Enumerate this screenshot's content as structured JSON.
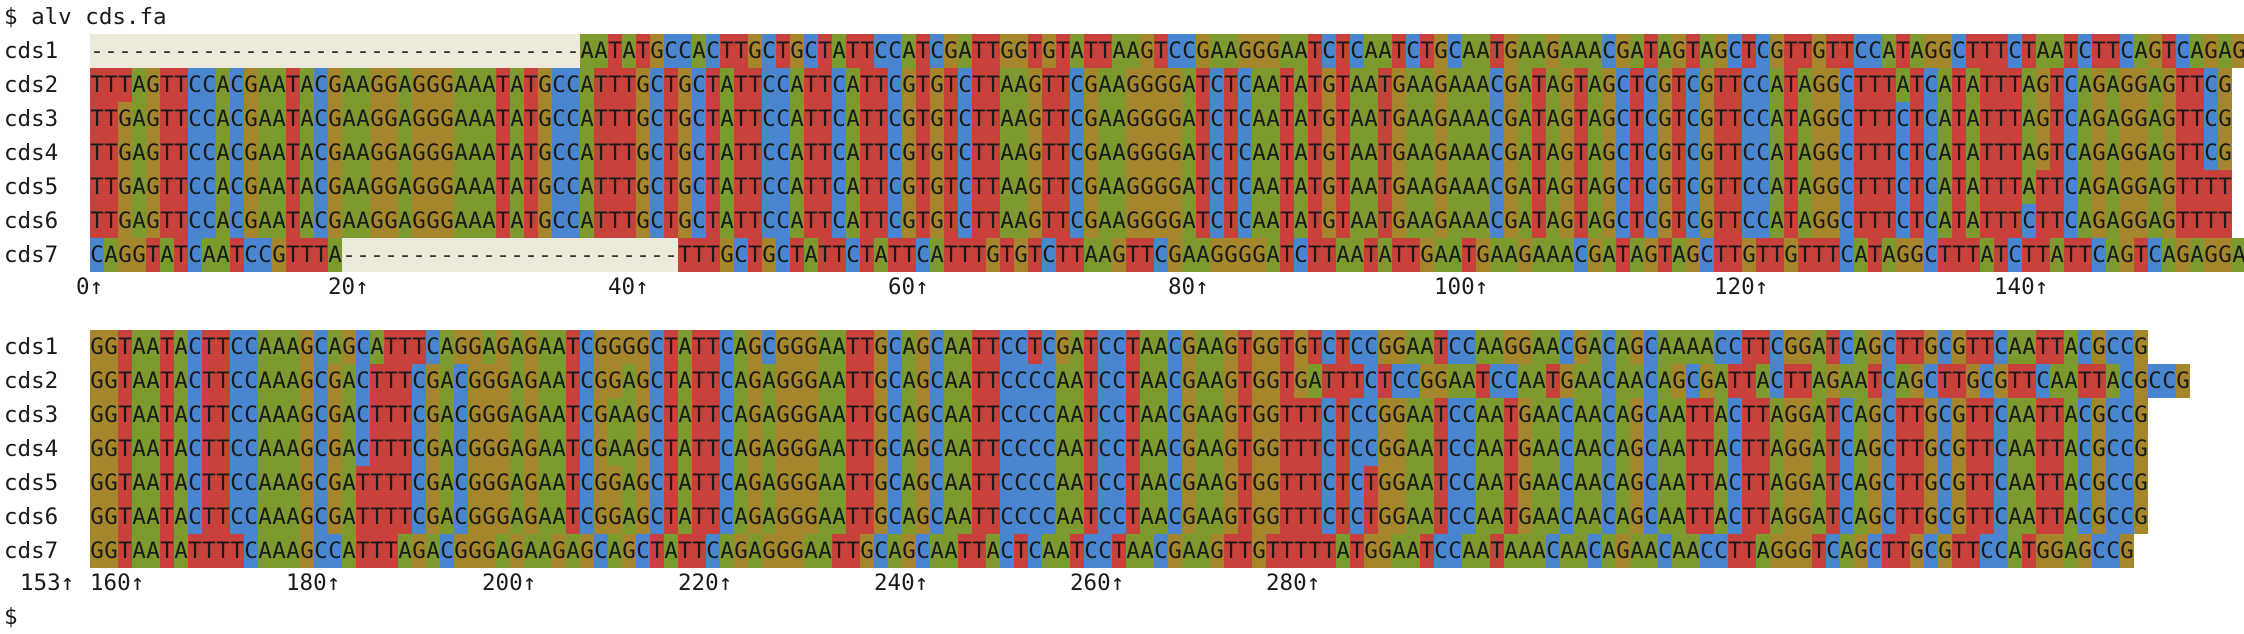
{
  "terminal": {
    "command": "$ alv cds.fa",
    "prompt_end": "$"
  },
  "colors": {
    "A": "#7d9a2e",
    "C": "#4a86d0",
    "G": "#a5862c",
    "T": "#c8413a",
    "gap": "#eeeadb",
    "pink": "#d04e8e"
  },
  "blocks": [
    {
      "rows": [
        {
          "label": "cds1",
          "seq": "-----------------------------------AATATGCCACTTGCTGCTATTCCATCGATTGGTGTATTAAGTCCGAAGGGAATCTCAATCTGCAATGAAGAAACGATAGTAGCTCGTTGTTCCATAGGCTTTCTAATCTTCAGTCAGAGGAGTTTG"
        },
        {
          "label": "cds2",
          "seq": "TTTAGTTCCACGAATACGAAGGAGGGAAATATGCCATTTGCTGCTATTCCATTCATTCGTGTCTTAAGTTCGAAGGGGATCTCAATATGTAATGAAGAAACGATAGTAGCTCGTCGTTCCATAGGCTTTATCATATTTAGTCAGAGGAGTTCG"
        },
        {
          "label": "cds3",
          "seq": "TTGAGTTCCACGAATACGAAGGAGGGAAATATGCCATTTGCTGCTATTCCATTCATTCGTGTCTTAAGTTCGAAGGGGATCTCAATATGTAATGAAGAAACGATAGTAGCTCGTCGTTCCATAGGCTTTCTCATATTTAGTCAGAGGAGTTCG"
        },
        {
          "label": "cds4",
          "seq": "TTGAGTTCCACGAATACGAAGGAGGGAAATATGCCATTTGCTGCTATTCCATTCATTCGTGTCTTAAGTTCGAAGGGGATCTCAATATGTAATGAAGAAACGATAGTAGCTCGTCGTTCCATAGGCTTTCTCATATTTAGTCAGAGGAGTTCG"
        },
        {
          "label": "cds5",
          "seq": "TTGAGTTCCACGAATACGAAGGAGGGAAATATGCCATTTGCTGCTATTCCATTCATTCGTGTCTTAAGTTCGAAGGGGATCTCAATATGTAATGAAGAAACGATAGTAGCTCGTCGTTCCATAGGCTTTCTCATATTTATTCAGAGGAGTTTT"
        },
        {
          "label": "cds6",
          "seq": "TTGAGTTCCACGAATACGAAGGAGGGAAATATGCCATTTGCTGCTATTCCATTCATTCGTGTCTTAAGTTCGAAGGGGATCTCAATATGTAATGAAGAAACGATAGTAGCTCGTCGTTCCATAGGCTTTCTCATATTTCTTCAGAGGAGTTTT"
        },
        {
          "label": "cds7",
          "seq": "CAGGTATCAATCCGTTTA------------------------TTTGCTGCTATTCTATTCATTTGTGTCTTAAGTTCGAAGGGGATCTTAATATTGAATGAAGAAACGATAGTAGCTTGTTGTTTCATAGGCTTTATCTTATTCAGTCAGAGGAGTTCG"
        }
      ],
      "ruler": [
        {
          "text": "0↑",
          "col": 0
        },
        {
          "text": "20↑",
          "col": 19
        },
        {
          "text": "40↑",
          "col": 39
        },
        {
          "text": "60↑",
          "col": 59
        },
        {
          "text": "80↑",
          "col": 79
        },
        {
          "text": "100↑",
          "col": 99
        },
        {
          "text": "120↑",
          "col": 119
        },
        {
          "text": "140↑",
          "col": 139
        }
      ]
    },
    {
      "rows": [
        {
          "label": "cds1",
          "seq": "GGTAATACTTCCAAAGCAGCATTTCAGGAGAGAATCGGGGCTATTCAGCGGGAATTGCAGCAATTCCTCGATCCTAACGAAGTGGTGTCTCCGGAATCCAAGGAACGACAGCAAAACCTTCGGATCAGCTTGCGTTCAATTACGCCG"
        },
        {
          "label": "cds2",
          "seq": "GGTAATACTTCCAAAGCGACTTTCGACGGGAGAATCGGAGCTATTCAGAGGGAATTGCAGCAATTCCCCAATCCTAACGAAGTGGTGATTTCTCCGGAATCCAATGAACAACAGCGATTACTTAGAATCAGCTTGCGTTCAATTACGCCG"
        },
        {
          "label": "cds3",
          "seq": "GGTAATACTTCCAAAGCGACTTTCGACGGGAGAATCGAAGCTATTCAGAGGGAATTGCAGCAATTCCCCAATCCTAACGAAGTGGTTTCTCCGGAATCCAATGAACAACAGCAATTACTTAGGATCAGCTTGCGTTCAATTACGCCG"
        },
        {
          "label": "cds4",
          "seq": "GGTAATACTTCCAAAGCGACTTTCGACGGGAGAATCGAAGCTATTCAGAGGGAATTGCAGCAATTCCCCAATCCTAACGAAGTGGTTTCTCCGGAATCCAATGAACAACAGCAATTACTTAGGATCAGCTTGCGTTCAATTACGCCG"
        },
        {
          "label": "cds5",
          "seq": "GGTAATACTTCCAAAGCGATTTTCGACGGGAGAATCGGAGCTATTCAGAGGGAATTGCAGCAATTCCCCAATCCTAACGAAGTGGTTTCTCTGGAATCCAATGAACAACAGCAATTACTTAGGATCAGCTTGCGTTCAATTACGCCG"
        },
        {
          "label": "cds6",
          "seq": "GGTAATACTTCCAAAGCGATTTTCGACGGGAGAATCGGAGCTATTCAGAGGGAATTGCAGCAATTCCCCAATCCTAACGAAGTGGTTTCTCTGGAATCCAATGAACAACAGCAATTACTTAGGATCAGCTTGCGTTCAATTACGCCG"
        },
        {
          "label": "cds7",
          "seq": "GGTAATATTTTCAAAGCCATTTAGACGGGAGAAGAGCAGCTATTCAGAGGGAATTGCAGCAATTACTCAATCCTAACGAAGTTGTTTTTATGGAATCCAATAAACAACAGAACAACCTTAGGGTCAGCTTGCGTTCCATGGAGCCG"
        }
      ],
      "ruler": [
        {
          "text": "153↑",
          "col": -2
        },
        {
          "text": "160↑",
          "col": 3
        },
        {
          "text": "180↑",
          "col": 17
        },
        {
          "text": "200↑",
          "col": 31
        },
        {
          "text": "220↑",
          "col": 45
        },
        {
          "text": "240↑",
          "col": 59
        },
        {
          "text": "260↑",
          "col": 73
        },
        {
          "text": "280↑",
          "col": 87
        }
      ]
    }
  ]
}
